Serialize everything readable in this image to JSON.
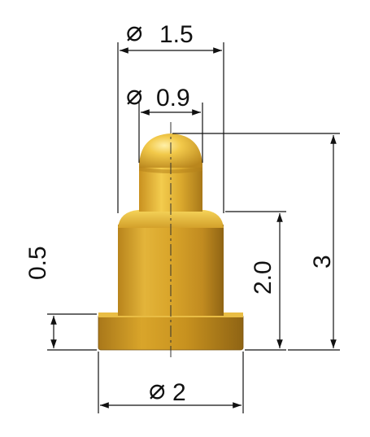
{
  "diagram": {
    "type": "technical-drawing",
    "subject": "pogo pin",
    "colors": {
      "gold_light": "#f6d45a",
      "gold_mid": "#d9a52a",
      "gold_dark": "#a9781a",
      "dimension_line": "#111111"
    },
    "dimensions": {
      "dia_top_plunger": {
        "symbol": "⌀",
        "value": "0.9"
      },
      "dia_barrel": {
        "symbol": "⌀",
        "value": "1.5"
      },
      "dia_flange": {
        "symbol": "⌀",
        "value": "2"
      },
      "flange_height": {
        "value": "0.5"
      },
      "barrel_height": {
        "value": "2.0"
      },
      "total_height": {
        "value": "3"
      }
    }
  }
}
